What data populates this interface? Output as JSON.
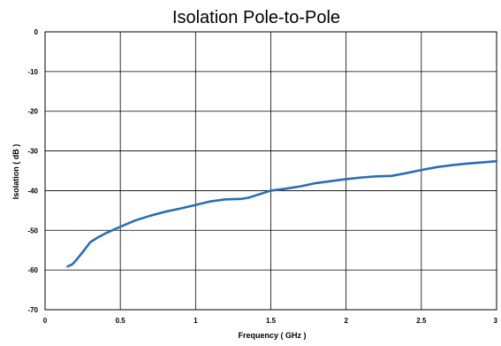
{
  "chart_data": {
    "type": "line",
    "title": "Isolation Pole-to-Pole",
    "xlabel": "Frequency ( GHz )",
    "ylabel": "Isolation ( dB )",
    "xlim": [
      0,
      3
    ],
    "ylim": [
      -70,
      0
    ],
    "x_ticks": [
      0,
      0.5,
      1,
      1.5,
      2,
      2.5,
      3
    ],
    "x_tick_labels": [
      "0",
      "0.5",
      "1",
      "1.5",
      "2",
      "2.5",
      "3"
    ],
    "y_ticks": [
      0,
      -10,
      -20,
      -30,
      -40,
      -50,
      -60,
      -70
    ],
    "y_tick_labels": [
      "0",
      "-10",
      "-20",
      "-30",
      "-40",
      "-50",
      "-60",
      "-70"
    ],
    "grid": true,
    "legend": "none",
    "series": [
      {
        "color": "#2a6db5",
        "x": [
          0.15,
          0.18,
          0.2,
          0.25,
          0.3,
          0.35,
          0.4,
          0.5,
          0.6,
          0.7,
          0.8,
          0.9,
          1.0,
          1.1,
          1.2,
          1.3,
          1.35,
          1.4,
          1.5,
          1.6,
          1.7,
          1.8,
          1.9,
          2.0,
          2.1,
          2.2,
          2.3,
          2.4,
          2.5,
          2.6,
          2.7,
          2.8,
          2.9,
          3.0
        ],
        "y": [
          -59.1,
          -58.6,
          -57.8,
          -55.5,
          -53.0,
          -51.8,
          -50.8,
          -49.1,
          -47.5,
          -46.3,
          -45.3,
          -44.5,
          -43.6,
          -42.7,
          -42.2,
          -42.1,
          -41.8,
          -41.2,
          -40.0,
          -39.5,
          -38.9,
          -38.1,
          -37.6,
          -37.1,
          -36.7,
          -36.4,
          -36.3,
          -35.6,
          -34.8,
          -34.1,
          -33.6,
          -33.2,
          -32.9,
          -32.6
        ]
      }
    ]
  }
}
